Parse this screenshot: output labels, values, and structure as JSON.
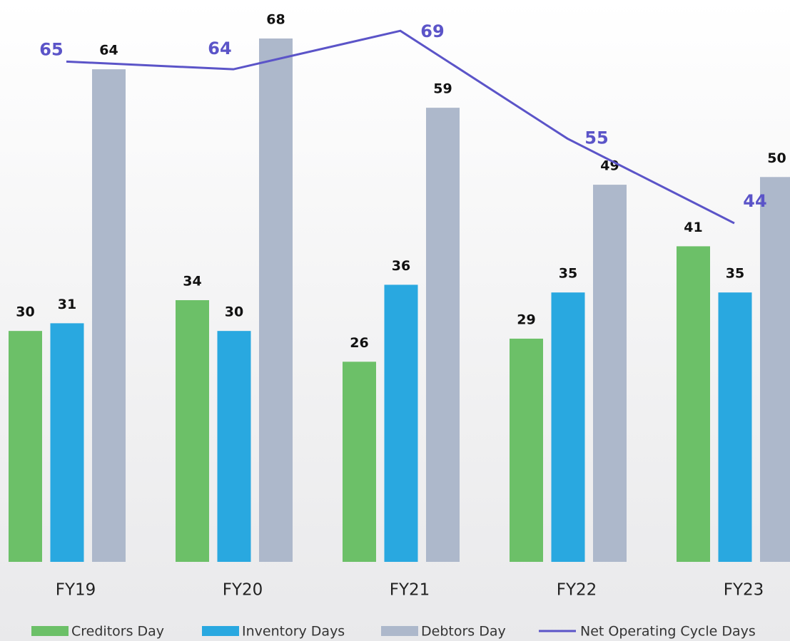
{
  "chart_data": {
    "type": "bar-line",
    "categories": [
      "FY19",
      "FY20",
      "FY21",
      "FY22",
      "FY23"
    ],
    "series": [
      {
        "name": "Creditors Day",
        "color": "#6cc068",
        "type": "bar",
        "values": [
          30,
          34,
          26,
          29,
          41
        ]
      },
      {
        "name": "Inventory Days",
        "color": "#29a8e0",
        "type": "bar",
        "values": [
          31,
          30,
          36,
          35,
          35
        ]
      },
      {
        "name": "Debtors Day",
        "color": "#adb8cb",
        "type": "bar",
        "values": [
          64,
          68,
          59,
          49,
          50
        ]
      },
      {
        "name": "Net Operating Cycle Days",
        "color": "#5b54c8",
        "type": "line",
        "values": [
          65,
          64,
          69,
          55,
          44
        ]
      }
    ],
    "ylim": [
      0,
      73
    ],
    "legend": "bottom"
  }
}
